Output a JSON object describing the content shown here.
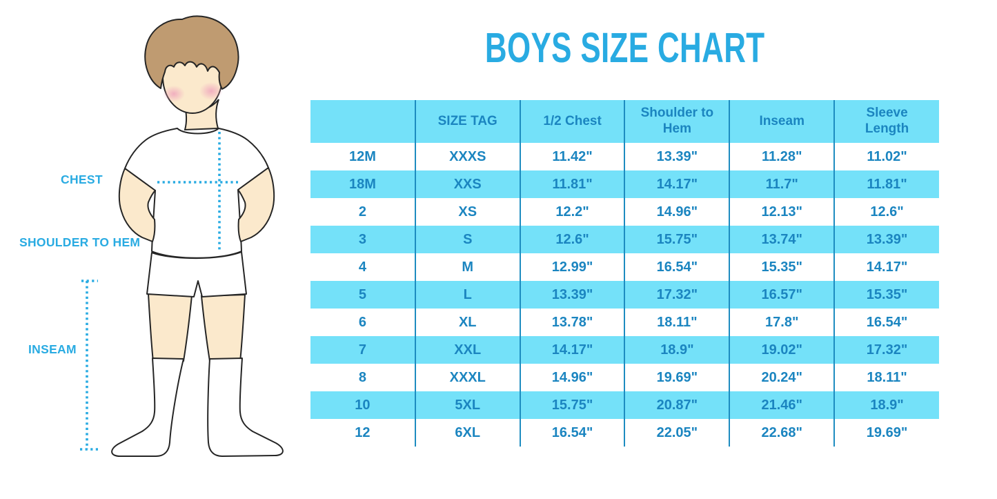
{
  "title": "BOYS SIZE CHART",
  "figure_labels": {
    "chest": "CHEST",
    "shoulder_to_hem": "SHOULDER TO HEM",
    "inseam": "INSEAM"
  },
  "colors": {
    "accent": "#29ABE2",
    "stripe": "#74E1F9",
    "grid": "#1D8CC0",
    "table_text": "#1B85C0",
    "skin": "#FBE9CC",
    "hair": "#BF9B71",
    "cheek": "#F0A9BE",
    "outline": "#252525"
  },
  "chart_data": {
    "type": "table",
    "title": "BOYS SIZE CHART",
    "units": "inches",
    "legend_position": "none",
    "grid": "vertical column separators only, alternating row striping starting with white",
    "columns": [
      "",
      "SIZE TAG",
      "1/2 Chest",
      "Shoulder to Hem",
      "Inseam",
      "Sleeve Length"
    ],
    "rows": [
      [
        "12M",
        "XXXS",
        "11.42\"",
        "13.39\"",
        "11.28\"",
        "11.02\""
      ],
      [
        "18M",
        "XXS",
        "11.81\"",
        "14.17\"",
        "11.7\"",
        "11.81\""
      ],
      [
        "2",
        "XS",
        "12.2\"",
        "14.96\"",
        "12.13\"",
        "12.6\""
      ],
      [
        "3",
        "S",
        "12.6\"",
        "15.75\"",
        "13.74\"",
        "13.39\""
      ],
      [
        "4",
        "M",
        "12.99\"",
        "16.54\"",
        "15.35\"",
        "14.17\""
      ],
      [
        "5",
        "L",
        "13.39\"",
        "17.32\"",
        "16.57\"",
        "15.35\""
      ],
      [
        "6",
        "XL",
        "13.78\"",
        "18.11\"",
        "17.8\"",
        "16.54\""
      ],
      [
        "7",
        "XXL",
        "14.17\"",
        "18.9\"",
        "19.02\"",
        "17.32\""
      ],
      [
        "8",
        "XXXL",
        "14.96\"",
        "19.69\"",
        "20.24\"",
        "18.11\""
      ],
      [
        "10",
        "5XL",
        "15.75\"",
        "20.87\"",
        "21.46\"",
        "18.9\""
      ],
      [
        "12",
        "6XL",
        "16.54\"",
        "22.05\"",
        "22.68\"",
        "19.69\""
      ]
    ]
  }
}
